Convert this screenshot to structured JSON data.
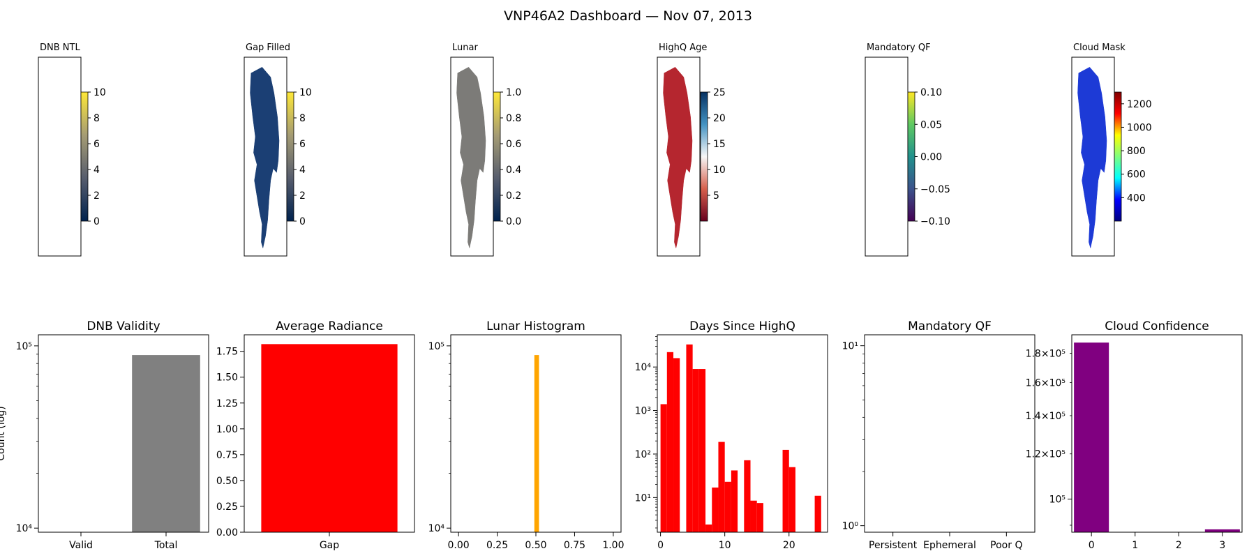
{
  "title": "VNP46A2 Dashboard — Nov 07, 2013",
  "map_panels": [
    {
      "title": "DNB NTL",
      "colormap": "cividis",
      "colors": [
        "#00224e",
        "#575d6d",
        "#a59c74",
        "#fee838"
      ],
      "ticks": [
        "0",
        "2",
        "4",
        "6",
        "8",
        "10"
      ],
      "range": [
        0,
        10
      ],
      "shows_data": false
    },
    {
      "title": "Gap Filled",
      "colormap": "cividis",
      "colors": [
        "#00224e",
        "#575d6d",
        "#a59c74",
        "#fee838"
      ],
      "ticks": [
        "0",
        "2",
        "4",
        "6",
        "8",
        "10"
      ],
      "range": [
        0,
        10
      ],
      "shows_data": true,
      "fill": "#1b3f74"
    },
    {
      "title": "Lunar",
      "colormap": "cividis",
      "colors": [
        "#00224e",
        "#575d6d",
        "#a59c74",
        "#fee838"
      ],
      "ticks": [
        "0.0",
        "0.2",
        "0.4",
        "0.6",
        "0.8",
        "1.0"
      ],
      "range": [
        0,
        1
      ],
      "shows_data": true,
      "fill": "#7c7b78"
    },
    {
      "title": "HighQ Age",
      "colormap": "RdBu",
      "colors": [
        "#67001f",
        "#d6604d",
        "#f7f7f7",
        "#4393c3",
        "#053061"
      ],
      "ticks": [
        "5",
        "10",
        "15",
        "20",
        "25"
      ],
      "range": [
        0,
        25
      ],
      "shows_data": true,
      "fill": "#b5262f"
    },
    {
      "title": "Mandatory QF",
      "colormap": "viridis",
      "colors": [
        "#440154",
        "#3b528b",
        "#21918c",
        "#5ec962",
        "#fde725"
      ],
      "ticks": [
        "−0.10",
        "−0.05",
        "0.00",
        "0.05",
        "0.10"
      ],
      "range": [
        -0.1,
        0.1
      ],
      "shows_data": false
    },
    {
      "title": "Cloud Mask",
      "colormap": "jet",
      "colors": [
        "#00007f",
        "#0000ff",
        "#00ffff",
        "#7fff7f",
        "#ffff00",
        "#ff0000",
        "#7f0000"
      ],
      "ticks": [
        "400",
        "600",
        "800",
        "1000",
        "1200"
      ],
      "range": [
        200,
        1300
      ],
      "shows_data": true,
      "fill": "#1d3ad6"
    }
  ],
  "chart_data": [
    {
      "type": "bar",
      "title": "DNB Validity",
      "ylabel": "Count (log)",
      "yscale": "log",
      "categories": [
        "Valid",
        "Total"
      ],
      "values": [
        0,
        89000
      ],
      "color": "#808080",
      "ylim": [
        9500,
        115000
      ]
    },
    {
      "type": "bar",
      "title": "Average Radiance",
      "yscale": "linear",
      "categories": [
        "Gap"
      ],
      "values": [
        1.82
      ],
      "color": "#ff0000",
      "ylim": [
        0,
        1.91
      ]
    },
    {
      "type": "histogram",
      "title": "Lunar Histogram",
      "yscale": "log",
      "bins": [
        {
          "x0": 0.49,
          "x1": 0.52,
          "count": 89000
        }
      ],
      "color": "#ffa500",
      "xlim": [
        -0.05,
        1.05
      ],
      "ylim": [
        9500,
        115000
      ]
    },
    {
      "type": "histogram",
      "title": "Days Since HighQ",
      "yscale": "log",
      "bins": [
        {
          "x0": 0,
          "x1": 1,
          "count": 1400
        },
        {
          "x0": 1,
          "x1": 2,
          "count": 22000
        },
        {
          "x0": 2,
          "x1": 3,
          "count": 16000
        },
        {
          "x0": 4,
          "x1": 5,
          "count": 33000
        },
        {
          "x0": 5,
          "x1": 6,
          "count": 9000
        },
        {
          "x0": 6,
          "x1": 7,
          "count": 9000
        },
        {
          "x0": 7,
          "x1": 8,
          "count": 2.4
        },
        {
          "x0": 8,
          "x1": 9,
          "count": 17
        },
        {
          "x0": 9,
          "x1": 10,
          "count": 190
        },
        {
          "x0": 10,
          "x1": 11,
          "count": 23
        },
        {
          "x0": 11,
          "x1": 12,
          "count": 42
        },
        {
          "x0": 13,
          "x1": 14,
          "count": 72
        },
        {
          "x0": 14,
          "x1": 15,
          "count": 8.5
        },
        {
          "x0": 15,
          "x1": 16,
          "count": 7.5
        },
        {
          "x0": 19,
          "x1": 20,
          "count": 125
        },
        {
          "x0": 20,
          "x1": 21,
          "count": 50
        },
        {
          "x0": 24,
          "x1": 25,
          "count": 11
        }
      ],
      "color": "#ff0000",
      "xlim": [
        -0.5,
        26
      ],
      "ylim": [
        1.6,
        55000
      ]
    },
    {
      "type": "bar",
      "title": "Mandatory QF",
      "yscale": "log",
      "categories": [
        "Persistent",
        "Ephemeral",
        "Poor Q"
      ],
      "values": [
        0,
        0,
        0
      ],
      "ylim": [
        0.92,
        11.5
      ]
    },
    {
      "type": "bar",
      "title": "Cloud Confidence",
      "yscale": "log",
      "categories": [
        "0",
        "1",
        "2",
        "3"
      ],
      "values": [
        188000,
        0,
        0,
        88500
      ],
      "color": "#800080",
      "ylim": [
        87500,
        194000
      ]
    }
  ]
}
